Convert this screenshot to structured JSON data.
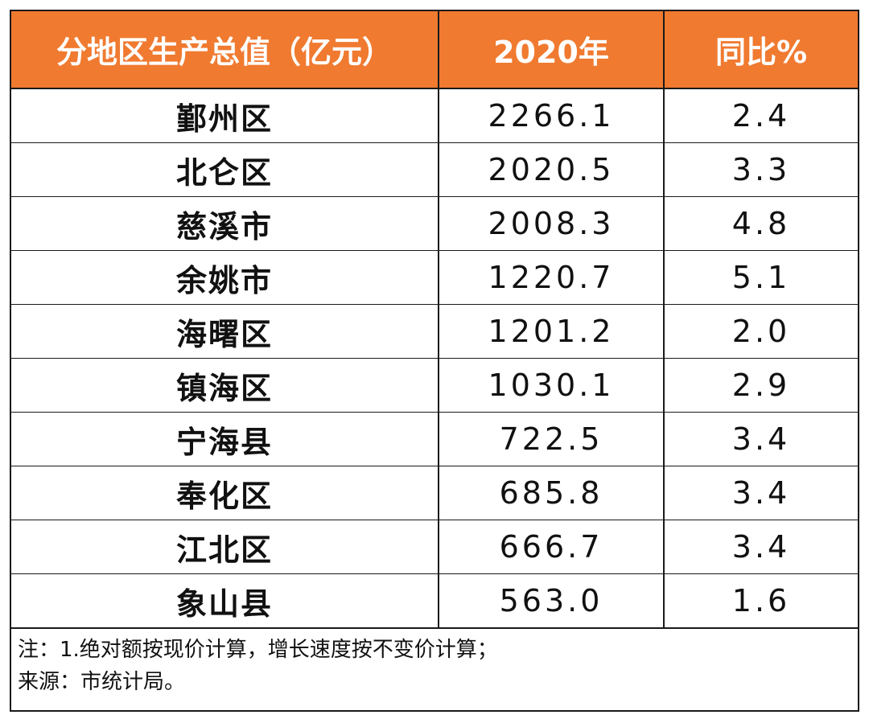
{
  "header": {
    "col_region": "分地区生产总值（亿元）",
    "col_value": "2020年",
    "col_yoy": "同比%"
  },
  "rows": [
    {
      "region": "鄞州区",
      "value": "2266.1",
      "yoy": "2.4"
    },
    {
      "region": "北仑区",
      "value": "2020.5",
      "yoy": "3.3"
    },
    {
      "region": "慈溪市",
      "value": "2008.3",
      "yoy": "4.8"
    },
    {
      "region": "余姚市",
      "value": "1220.7",
      "yoy": "5.1"
    },
    {
      "region": "海曙区",
      "value": "1201.2",
      "yoy": "2.0"
    },
    {
      "region": "镇海区",
      "value": "1030.1",
      "yoy": "2.9"
    },
    {
      "region": "宁海县",
      "value": "722.5",
      "yoy": "3.4"
    },
    {
      "region": "奉化区",
      "value": "685.8",
      "yoy": "3.4"
    },
    {
      "region": "江北区",
      "value": "666.7",
      "yoy": "3.4"
    },
    {
      "region": "象山县",
      "value": "563.0",
      "yoy": "1.6"
    }
  ],
  "notes": {
    "note": "注：1.绝对额按现价计算，增长速度按不变价计算；",
    "source": "来源：市统计局。"
  },
  "colors": {
    "header_bg": "#f07a30",
    "header_text": "#ffffff",
    "border": "#1a1a1a"
  }
}
